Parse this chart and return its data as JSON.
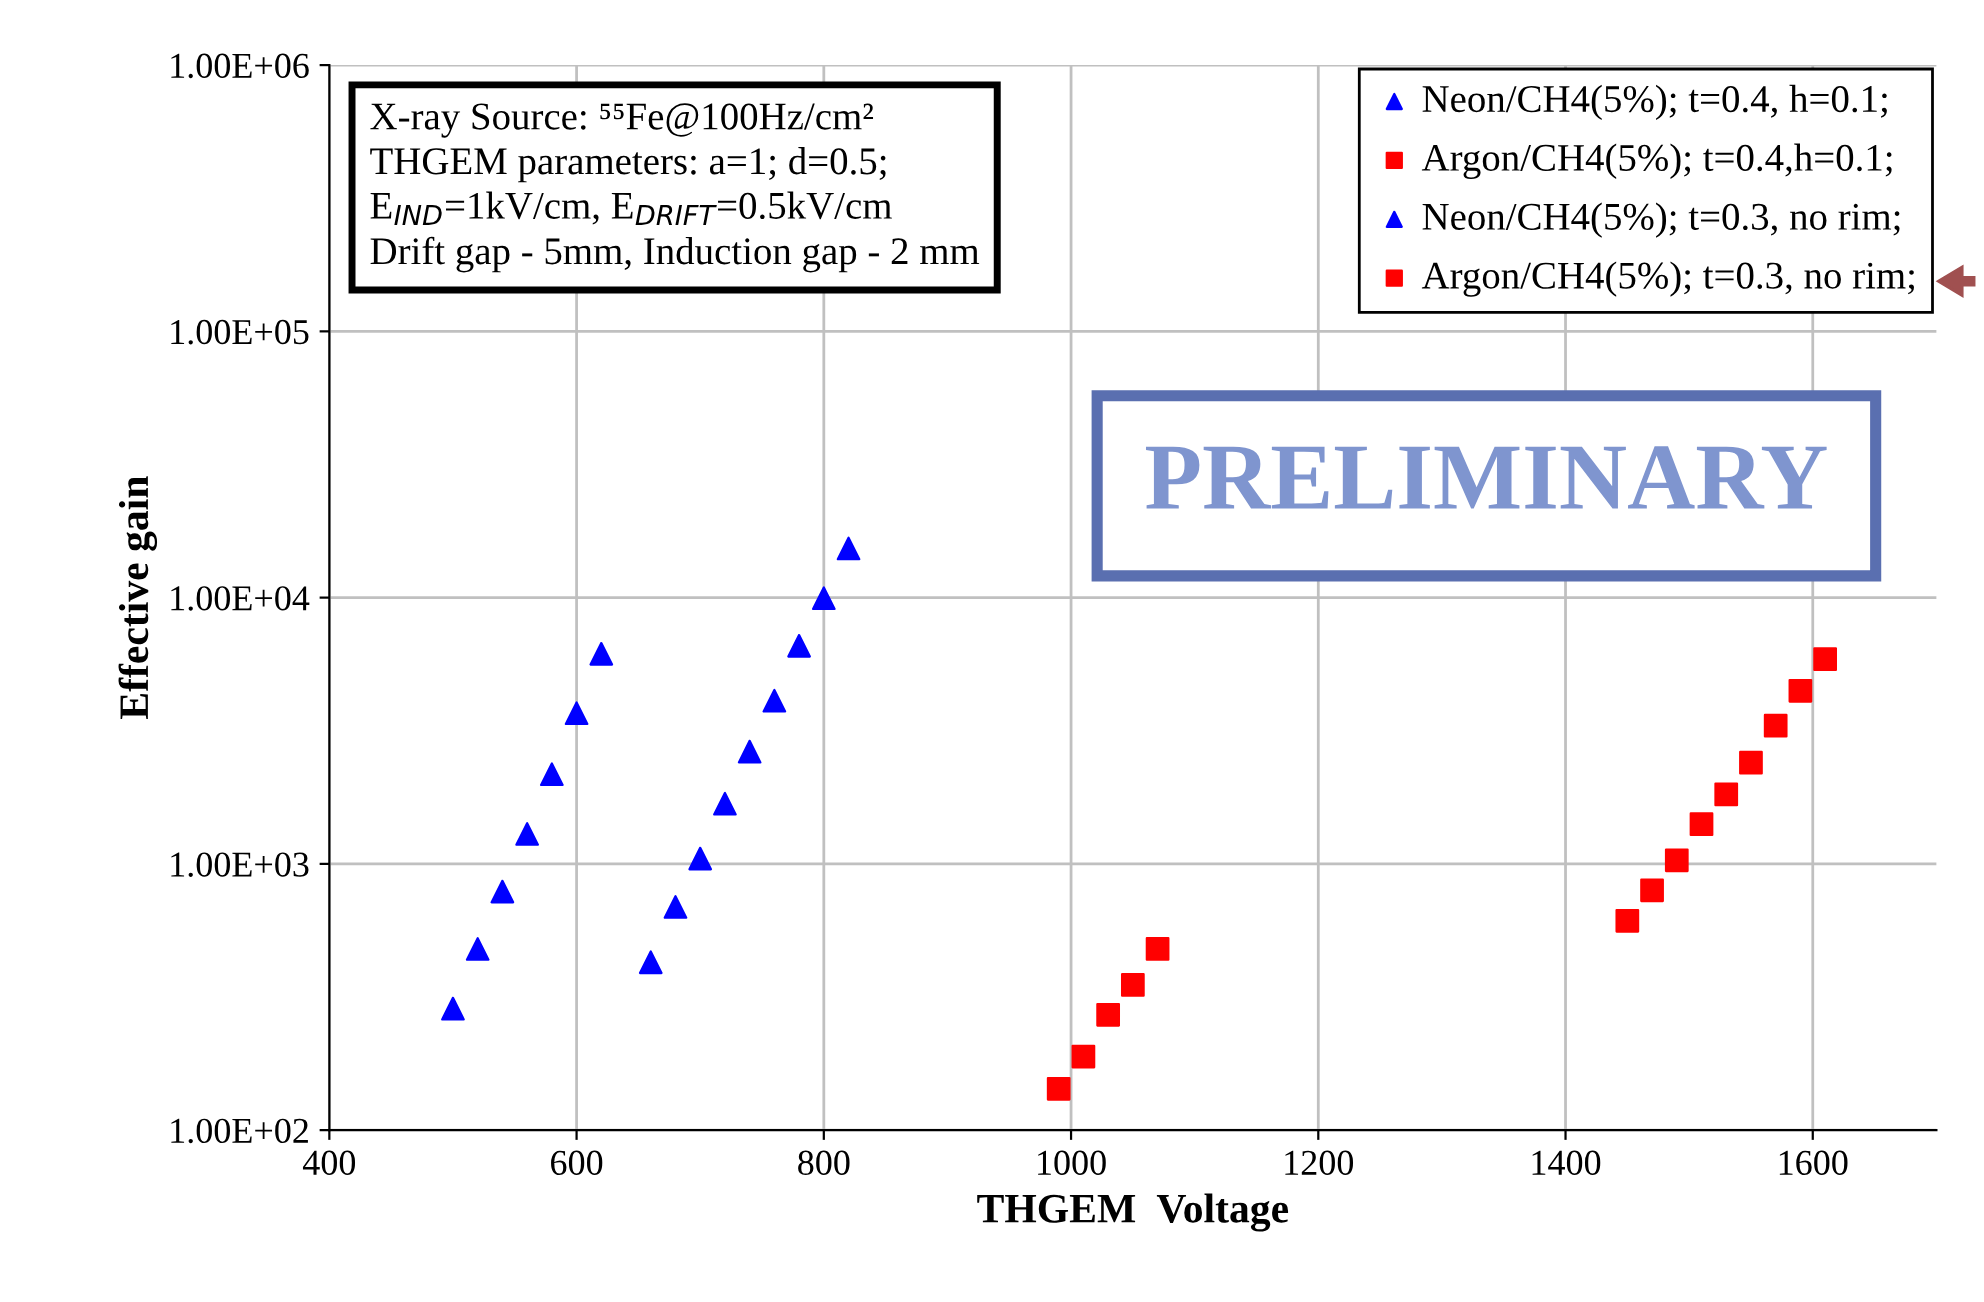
{
  "chart_data": {
    "type": "scatter",
    "xlabel": "THGEM  Voltage",
    "ylabel": "Effective gain",
    "log": "y",
    "xlim": [
      400,
      1700
    ],
    "xticks": [
      400,
      600,
      800,
      1000,
      1200,
      1400,
      1600
    ],
    "ylim": [
      100,
      1000000
    ],
    "yticks": [
      {
        "value": 100,
        "label": "1.00E+02"
      },
      {
        "value": 1000,
        "label": "1.00E+03"
      },
      {
        "value": 10000,
        "label": "1.00E+04"
      },
      {
        "value": 100000,
        "label": "1.00E+05"
      },
      {
        "value": 1000000,
        "label": "1.00E+06"
      }
    ],
    "grid": true,
    "legend": "top right",
    "series": [
      {
        "name": "Neon/CH4(5%); t=0.4, h=0.1;",
        "color": "#0000ff",
        "marker": "triangle",
        "x": [
          660,
          680,
          700,
          720,
          740,
          760,
          780,
          800,
          820
        ],
        "values": [
          427,
          689,
          1047,
          1683,
          2640,
          4100,
          6590,
          9950,
          15300
        ]
      },
      {
        "name": "Argon/CH4(5%); t=0.4,h=0.1;",
        "color": "#ff0000",
        "marker": "square",
        "x": [
          1450,
          1470,
          1490,
          1510,
          1530,
          1550,
          1570,
          1590,
          1610
        ],
        "values": [
          611,
          796,
          1031,
          1409,
          1824,
          2398,
          3304,
          4468,
          5875
        ]
      },
      {
        "name": "Neon/CH4(5%); t=0.3, no rim;",
        "color": "#0000ff",
        "marker": "triangle",
        "x": [
          500,
          520,
          540,
          560,
          580,
          600,
          620
        ],
        "values": [
          286,
          479,
          787,
          1295,
          2173,
          3680,
          6150
        ]
      },
      {
        "name": "Argon/CH4(5%); t=0.3, no rim;",
        "color": "#ff0000",
        "marker": "square",
        "x": [
          990,
          1010,
          1030,
          1050,
          1070
        ],
        "values": [
          143,
          189,
          271,
          351,
          479
        ]
      }
    ],
    "annotations": [
      "X-ray Source: ⁵⁵Fe@100Hz/cm²\nTHGEM parameters: a=1; d=0.5;\nE$_{IND}$=1kV/cm, E$_{DRIFT}$=0.5kV/cm\nDrift gap - 5mm, Induction gap - 2 mm",
      "PRELIMINARY"
    ]
  }
}
